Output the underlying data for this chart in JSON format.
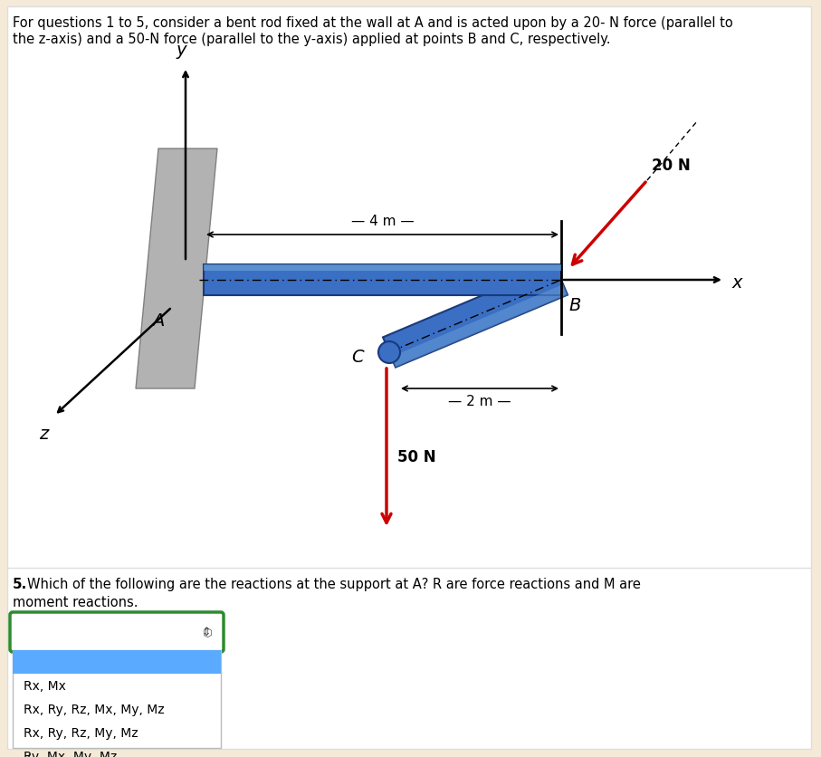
{
  "bg_color": "#f5ead8",
  "header_text_line1": "For questions 1 to 5, consider a bent rod fixed at the wall at A and is acted upon by a 20- N force (parallel to",
  "header_text_line2": "the z-axis) and a 50-N force (parallel to the y-axis) applied at points B and C, respectively.",
  "header_fontsize": 10.5,
  "question_bold": "5.",
  "question_rest": " Which of the following are the reactions at the support at A? R are force reactions and M are",
  "question_line2": "moment reactions.",
  "dropdown_options": [
    "Rx, Mx",
    "Rx, Ry, Rz, Mx, My, Mz",
    "Rx, Ry, Rz, My, Mz",
    "Ry, Mx, My, Mz"
  ],
  "dropdown_highlight_color": "#5aabff",
  "dropdown_border_color": "#2e8b2e",
  "rod_color": "#3a6fc4",
  "rod_light": "#6a9fd8",
  "rod_dark": "#1a3a7a",
  "wall_color": "#aaaaaa",
  "wall_edge": "#777777",
  "force_color": "#cc0000",
  "label_A": "A",
  "label_B": "B",
  "label_C": "C",
  "label_x": "x",
  "label_y": "y",
  "label_z": "z",
  "label_4m": "– 4 m –",
  "label_2m": "– 2 m –",
  "label_20N": "20 N",
  "label_50N": "50 N"
}
